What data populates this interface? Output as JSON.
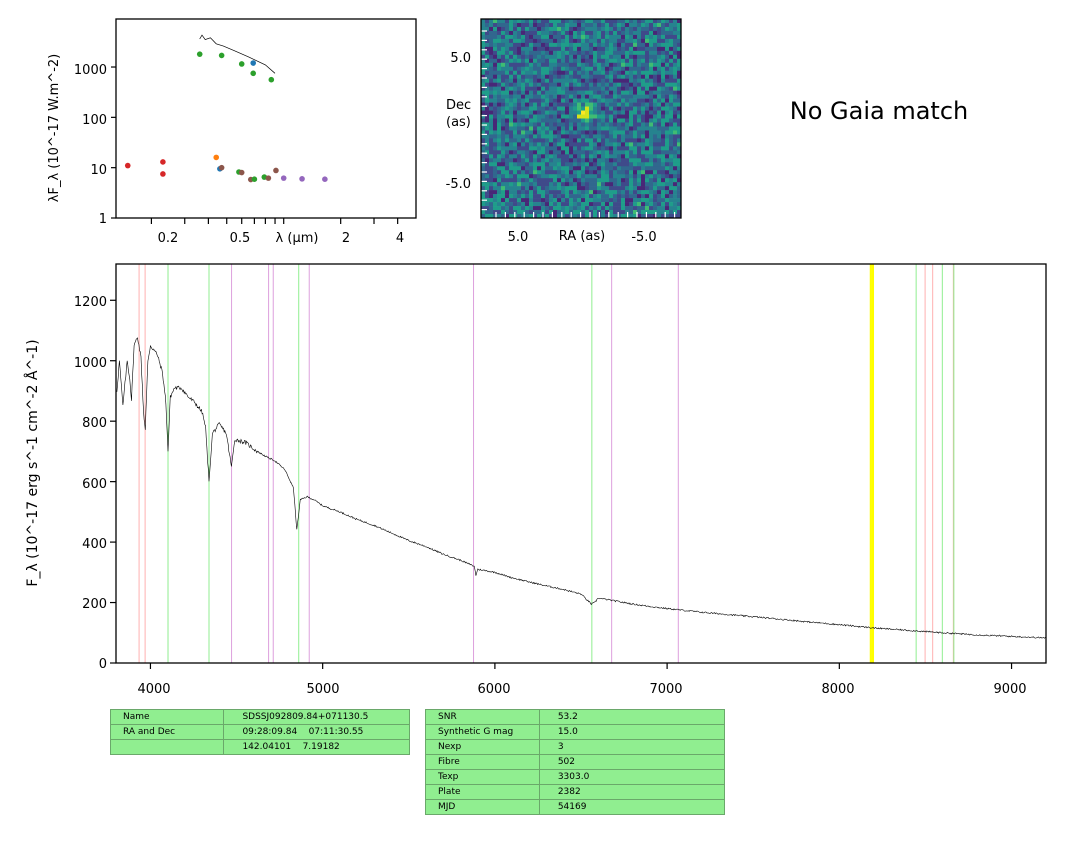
{
  "sed_panel": {
    "ylabel": "λF_λ (10^-17 W.m^-2)",
    "xlabel": "λ (μm)",
    "ytick_labels": [
      "1",
      "10",
      "100",
      "1000"
    ],
    "xtick_labels": [
      "0.2",
      "0.5",
      "2",
      "4"
    ]
  },
  "image_panel": {
    "xlabel": "RA (as)",
    "ylabel_line1": "Dec",
    "ylabel_line2": "(as)",
    "xtick_labels": [
      "5.0",
      "-5.0"
    ],
    "ytick_labels": [
      "5.0",
      "-5.0"
    ]
  },
  "gaia_text": "No Gaia match",
  "spectrum_panel": {
    "ylabel": "F_λ (10^-17 erg s^-1 cm^-2 Å^-1)",
    "xtick_labels": [
      "4000",
      "5000",
      "6000",
      "7000",
      "8000",
      "9000"
    ],
    "ytick_labels": [
      "0",
      "200",
      "400",
      "600",
      "800",
      "1000",
      "1200"
    ]
  },
  "left_table": [
    [
      "Name",
      "SDSSJ092809.84+071130.5"
    ],
    [
      "RA and Dec",
      "09:28:09.84    07:11:30.55"
    ],
    [
      "",
      "142.04101    7.19182"
    ]
  ],
  "right_table": [
    [
      "SNR",
      "53.2"
    ],
    [
      "Synthetic G mag",
      "15.0"
    ],
    [
      "Nexp",
      "3"
    ],
    [
      "Fibre",
      "502"
    ],
    [
      "Texp",
      "3303.0"
    ],
    [
      "Plate",
      "2382"
    ],
    [
      "MJD",
      "54169"
    ]
  ],
  "chart_data": [
    {
      "type": "scatter",
      "panel": "sed",
      "xscale": "log",
      "yscale": "log",
      "xlim": [
        0.13,
        5.0
      ],
      "ylim": [
        1,
        9000
      ],
      "colors": {
        "blue": "#1f77b4",
        "orange": "#ff7f0e",
        "green": "#2ca02c",
        "red": "#d62728",
        "purple": "#9467bd",
        "brown": "#8c564b"
      },
      "model_curve": [
        [
          0.36,
          3600
        ],
        [
          0.37,
          4300
        ],
        [
          0.385,
          3500
        ],
        [
          0.41,
          3800
        ],
        [
          0.44,
          2900
        ],
        [
          0.48,
          2600
        ],
        [
          0.55,
          2100
        ],
        [
          0.65,
          1600
        ],
        [
          0.8,
          1100
        ],
        [
          0.9,
          750
        ]
      ],
      "points": [
        {
          "x": 0.36,
          "y": 1800,
          "c": "green"
        },
        {
          "x": 0.47,
          "y": 1700,
          "c": "green"
        },
        {
          "x": 0.6,
          "y": 1150,
          "c": "green"
        },
        {
          "x": 0.69,
          "y": 1200,
          "c": "blue"
        },
        {
          "x": 0.69,
          "y": 750,
          "c": "green"
        },
        {
          "x": 0.86,
          "y": 560,
          "c": "green"
        },
        {
          "x": 0.15,
          "y": 11,
          "c": "red"
        },
        {
          "x": 0.23,
          "y": 13,
          "c": "red"
        },
        {
          "x": 0.23,
          "y": 7.5,
          "c": "red"
        },
        {
          "x": 0.44,
          "y": 16,
          "c": "orange"
        },
        {
          "x": 0.46,
          "y": 9.5,
          "c": "blue"
        },
        {
          "x": 0.47,
          "y": 10,
          "c": "brown"
        },
        {
          "x": 0.58,
          "y": 8.2,
          "c": "green"
        },
        {
          "x": 0.6,
          "y": 8.0,
          "c": "brown"
        },
        {
          "x": 0.67,
          "y": 5.8,
          "c": "brown"
        },
        {
          "x": 0.7,
          "y": 5.9,
          "c": "green"
        },
        {
          "x": 0.79,
          "y": 6.5,
          "c": "green"
        },
        {
          "x": 0.83,
          "y": 6.2,
          "c": "brown"
        },
        {
          "x": 0.91,
          "y": 8.8,
          "c": "brown"
        },
        {
          "x": 1.0,
          "y": 6.2,
          "c": "purple"
        },
        {
          "x": 1.25,
          "y": 6.0,
          "c": "purple"
        },
        {
          "x": 1.65,
          "y": 5.9,
          "c": "purple"
        }
      ]
    },
    {
      "type": "heatmap",
      "panel": "cutout",
      "colormap": "viridis",
      "xlim": [
        10,
        -10
      ],
      "ylim": [
        -10,
        10
      ],
      "source": {
        "ra": 0.0,
        "dec": 0.3
      }
    },
    {
      "type": "line",
      "panel": "spectrum",
      "xlim": [
        3800,
        9200
      ],
      "ylim": [
        0,
        1320
      ],
      "line_color": "#000000",
      "spectrum": [
        [
          3805,
          900
        ],
        [
          3820,
          1000
        ],
        [
          3840,
          850
        ],
        [
          3865,
          1000
        ],
        [
          3880,
          940
        ],
        [
          3890,
          870
        ],
        [
          3905,
          1050
        ],
        [
          3925,
          1080
        ],
        [
          3945,
          1010
        ],
        [
          3960,
          830
        ],
        [
          3970,
          770
        ],
        [
          3985,
          1000
        ],
        [
          4000,
          1050
        ],
        [
          4040,
          1020
        ],
        [
          4070,
          960
        ],
        [
          4090,
          860
        ],
        [
          4102,
          700
        ],
        [
          4115,
          880
        ],
        [
          4140,
          910
        ],
        [
          4180,
          910
        ],
        [
          4220,
          880
        ],
        [
          4260,
          860
        ],
        [
          4300,
          830
        ],
        [
          4320,
          780
        ],
        [
          4340,
          600
        ],
        [
          4360,
          760
        ],
        [
          4400,
          790
        ],
        [
          4440,
          760
        ],
        [
          4470,
          650
        ],
        [
          4490,
          740
        ],
        [
          4550,
          730
        ],
        [
          4620,
          700
        ],
        [
          4680,
          680
        ],
        [
          4720,
          670
        ],
        [
          4780,
          640
        ],
        [
          4830,
          580
        ],
        [
          4850,
          440
        ],
        [
          4870,
          540
        ],
        [
          4910,
          550
        ],
        [
          4950,
          540
        ],
        [
          5000,
          520
        ],
        [
          5100,
          500
        ],
        [
          5200,
          475
        ],
        [
          5300,
          455
        ],
        [
          5400,
          430
        ],
        [
          5500,
          405
        ],
        [
          5600,
          385
        ],
        [
          5700,
          360
        ],
        [
          5800,
          340
        ],
        [
          5880,
          320
        ],
        [
          5890,
          290
        ],
        [
          5900,
          310
        ],
        [
          6000,
          300
        ],
        [
          6100,
          282
        ],
        [
          6200,
          268
        ],
        [
          6300,
          255
        ],
        [
          6400,
          243
        ],
        [
          6500,
          228
        ],
        [
          6560,
          195
        ],
        [
          6580,
          200
        ],
        [
          6600,
          215
        ],
        [
          6700,
          205
        ],
        [
          6800,
          195
        ],
        [
          6900,
          187
        ],
        [
          7000,
          180
        ],
        [
          7200,
          168
        ],
        [
          7400,
          158
        ],
        [
          7600,
          148
        ],
        [
          7800,
          137
        ],
        [
          8000,
          127
        ],
        [
          8200,
          116
        ],
        [
          8400,
          108
        ],
        [
          8600,
          100
        ],
        [
          8800,
          93
        ],
        [
          9000,
          88
        ],
        [
          9200,
          83
        ]
      ],
      "line_markers": [
        {
          "x": 3934,
          "c": "#ffb0b0"
        },
        {
          "x": 3969,
          "c": "#ffb0b0"
        },
        {
          "x": 4102,
          "c": "#90ee90"
        },
        {
          "x": 4340,
          "c": "#90ee90"
        },
        {
          "x": 4471,
          "c": "#dda0dd"
        },
        {
          "x": 4686,
          "c": "#dda0dd"
        },
        {
          "x": 4713,
          "c": "#dda0dd"
        },
        {
          "x": 4861,
          "c": "#90ee90"
        },
        {
          "x": 4922,
          "c": "#dda0dd"
        },
        {
          "x": 5876,
          "c": "#dda0dd"
        },
        {
          "x": 6563,
          "c": "#90ee90"
        },
        {
          "x": 6678,
          "c": "#dda0dd"
        },
        {
          "x": 7065,
          "c": "#dda0dd"
        },
        {
          "x": 8183,
          "c": "#ffff00",
          "w": 2.2
        },
        {
          "x": 8195,
          "c": "#ffff00",
          "w": 2.2
        },
        {
          "x": 8446,
          "c": "#90ee90"
        },
        {
          "x": 8498,
          "c": "#ffb0b0"
        },
        {
          "x": 8542,
          "c": "#ffb0b0"
        },
        {
          "x": 8598,
          "c": "#90ee90"
        },
        {
          "x": 8662,
          "c": "#ffb0b0"
        },
        {
          "x": 8665,
          "c": "#90ee90"
        }
      ]
    }
  ]
}
